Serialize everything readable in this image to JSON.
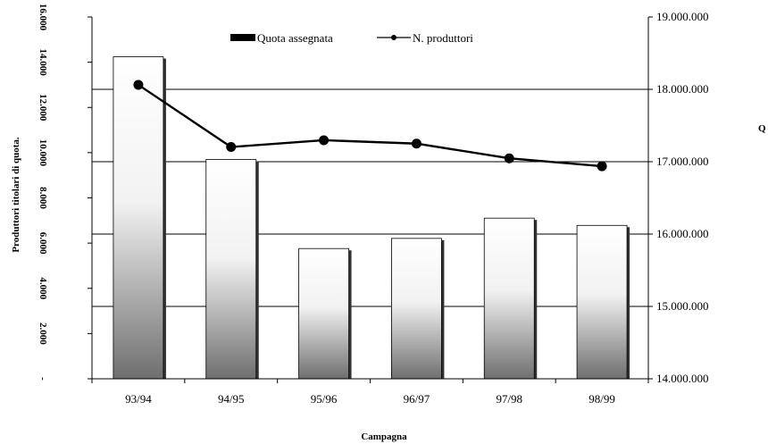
{
  "chart_data": {
    "type": "bar",
    "categories": [
      "93/94",
      "94/95",
      "95/96",
      "96/97",
      "97/98",
      "98/99"
    ],
    "series": [
      {
        "name": "Quota assegnata",
        "type": "bar",
        "axis": "right",
        "values": [
          18450000,
          17030000,
          15800000,
          15940000,
          16220000,
          16120000
        ]
      },
      {
        "name": "N. produttori",
        "type": "line",
        "axis": "left",
        "values": [
          13000,
          10250,
          10550,
          10400,
          9750,
          9400
        ]
      }
    ],
    "xlabel": "Campagna",
    "ylabel": "Produttori titolari di quota.",
    "ylabel_right": "Q",
    "ylim": [
      0,
      16000
    ],
    "ylim_right": [
      14000000,
      19000000
    ],
    "left_ticks": [
      "-",
      "2.000",
      "4.000",
      "6.000",
      "8.000",
      "10.000",
      "12.000",
      "14.000",
      "16.000"
    ],
    "left_tick_values": [
      0,
      2000,
      4000,
      6000,
      8000,
      10000,
      12000,
      14000,
      16000
    ],
    "right_ticks": [
      "14.000.000",
      "15.000.000",
      "16.000.000",
      "17.000.000",
      "18.000.000",
      "19.000.000"
    ],
    "right_tick_values": [
      14000000,
      15000000,
      16000000,
      17000000,
      18000000,
      19000000
    ],
    "gridlines": "horizontal",
    "legend_position": "top"
  }
}
